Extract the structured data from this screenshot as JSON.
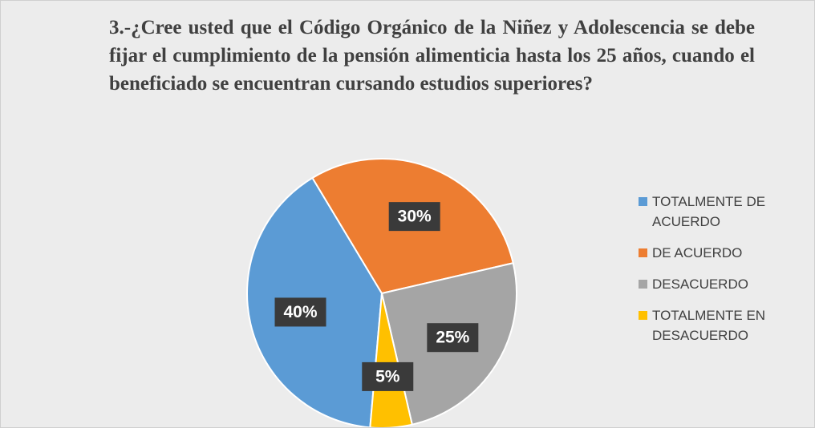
{
  "chart_data": {
    "type": "pie",
    "title": "3.-¿Cree usted que el Código Orgánico de la Niñez y Adolescencia se debe fijar el cumplimiento de la pensión alimenticia hasta los 25 años, cuando el beneficiado  se encuentran cursando estudios superiores?",
    "categories": [
      "TOTALMENTE DE ACUERDO",
      "DE ACUERDO",
      "DESACUERDO",
      "TOTALMENTE EN DESACUERDO"
    ],
    "values": [
      40,
      30,
      25,
      5
    ],
    "value_labels": [
      "40%",
      "30%",
      "25%",
      "5%"
    ],
    "colors": [
      "#5b9bd5",
      "#ed7d31",
      "#a5a5a5",
      "#ffc000"
    ],
    "legend": "right"
  }
}
